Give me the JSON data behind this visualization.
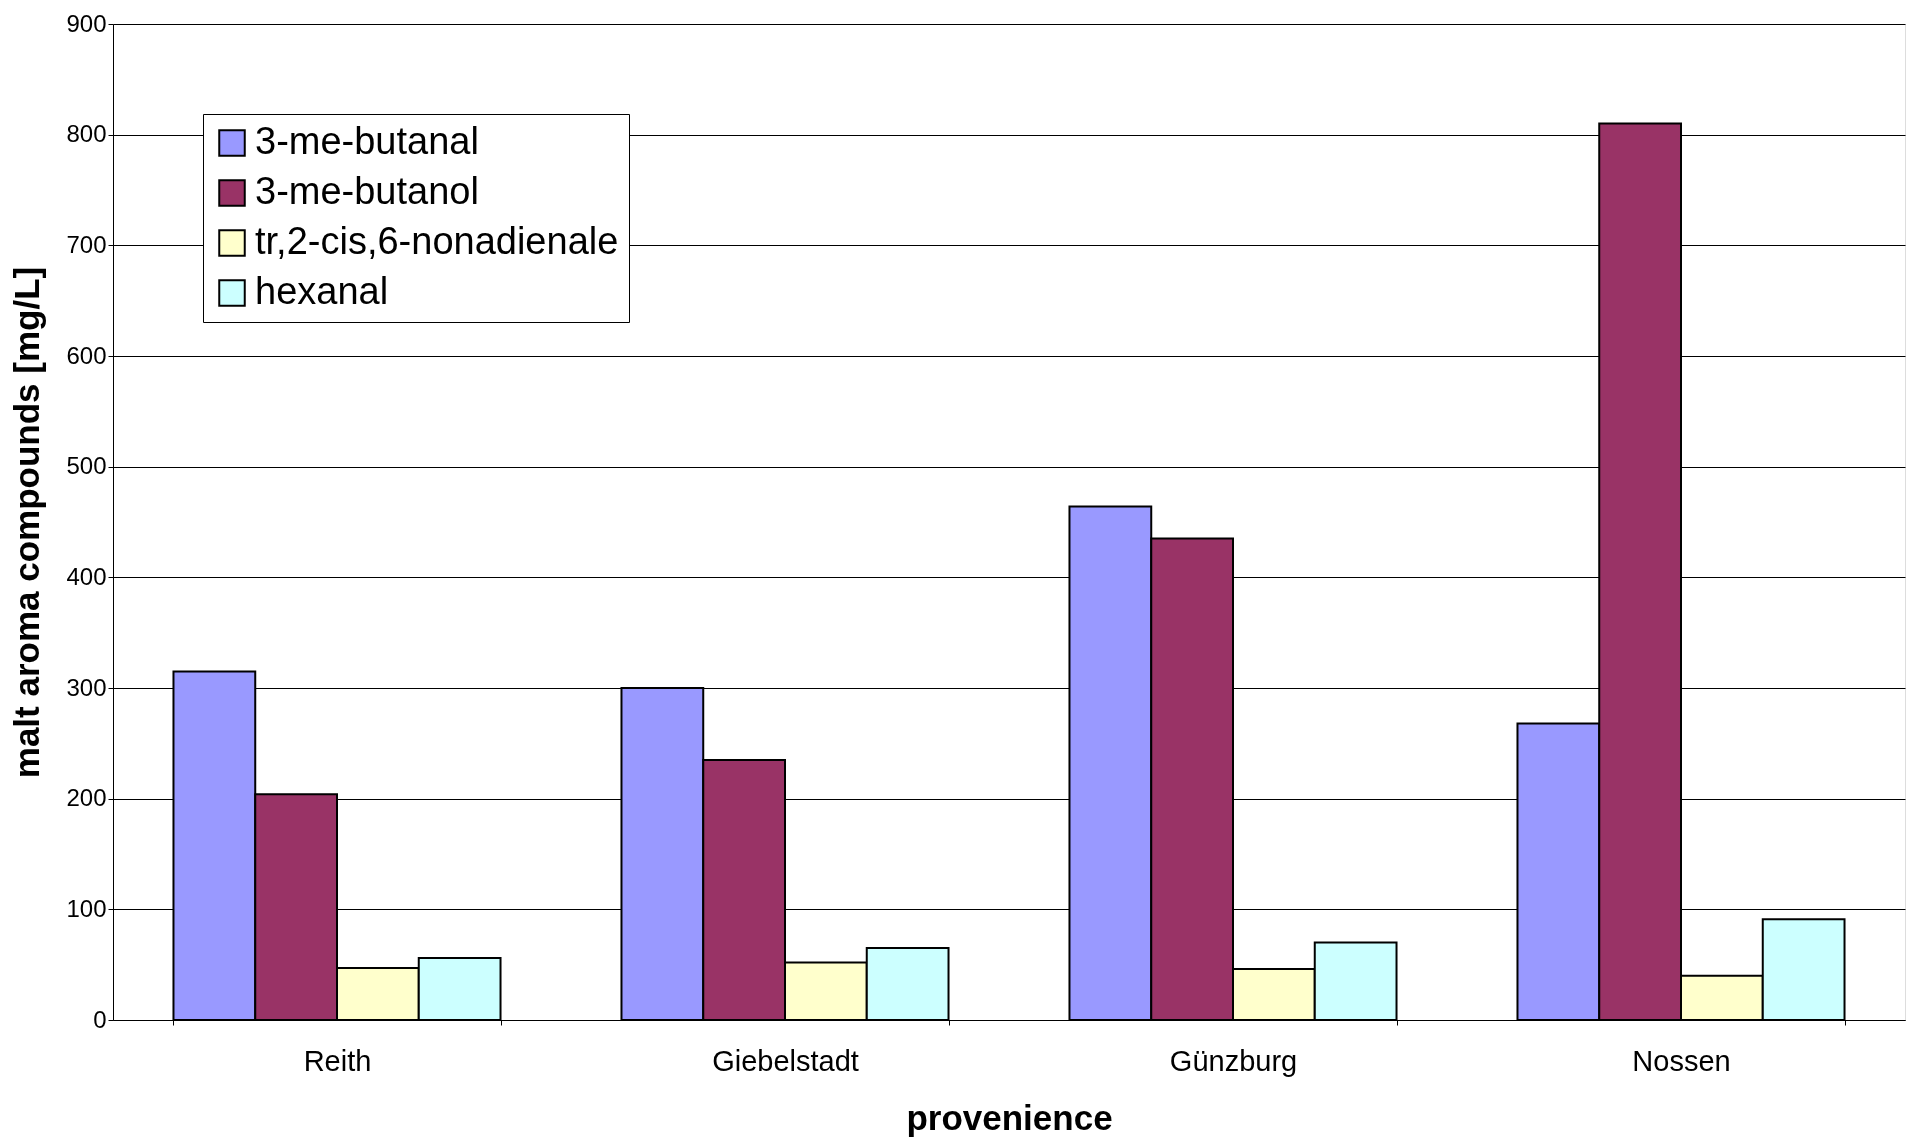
{
  "chart_data": {
    "type": "bar",
    "xlabel": "provenience",
    "ylabel": "malt aroma compounds [mg/L]",
    "categories": [
      "Reith",
      "Giebelstadt",
      "Günzburg",
      "Nossen"
    ],
    "series": [
      {
        "name": "3-me-butanal",
        "color": "#9999ff",
        "values": [
          315,
          300,
          464,
          268
        ]
      },
      {
        "name": "3-me-butanol",
        "color": "#993366",
        "values": [
          204,
          235,
          435,
          810
        ]
      },
      {
        "name": "tr,2-cis,6-nonadienale",
        "color": "#ffffcc",
        "values": [
          47,
          52,
          46,
          40
        ]
      },
      {
        "name": "hexanal",
        "color": "#ccffff",
        "values": [
          56,
          65,
          70,
          91
        ]
      }
    ],
    "ylim": [
      0,
      900
    ],
    "yticks": [
      0,
      100,
      200,
      300,
      400,
      500,
      600,
      700,
      800,
      900
    ],
    "grid": "y",
    "legend": "top left"
  }
}
